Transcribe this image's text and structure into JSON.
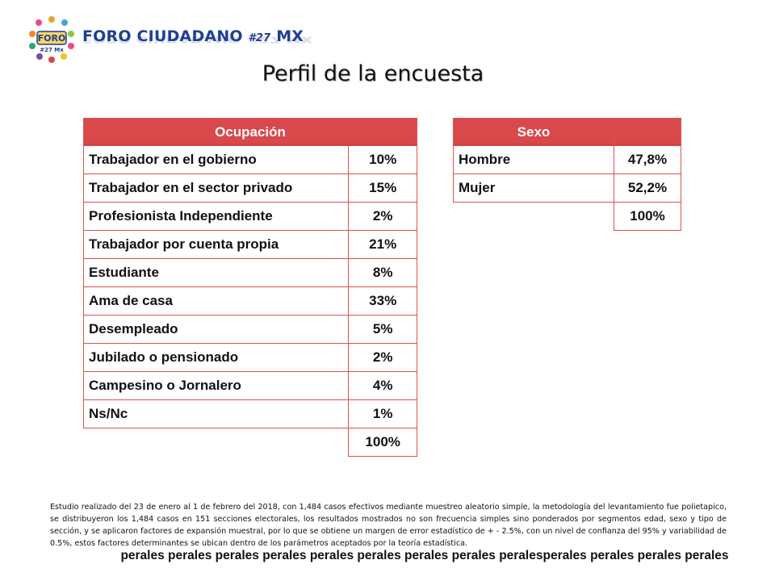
{
  "logo": {
    "emblem_text": "FORO",
    "emblem_subtext": "#27 Mx",
    "name": "FORO CIUDADANO",
    "number": "#27",
    "suffix": "MX"
  },
  "title": "Perfil de la encuesta",
  "occupation_table": {
    "header": "Ocupación",
    "rows": [
      {
        "label": "Trabajador en el gobierno",
        "value": "10%"
      },
      {
        "label": "Trabajador en el sector privado",
        "value": "15%"
      },
      {
        "label": "Profesionista Independiente",
        "value": "2%"
      },
      {
        "label": "Trabajador por cuenta propia",
        "value": "21%"
      },
      {
        "label": "Estudiante",
        "value": "8%"
      },
      {
        "label": "Ama de casa",
        "value": "33%"
      },
      {
        "label": "Desempleado",
        "value": "5%"
      },
      {
        "label": "Jubilado o pensionado",
        "value": "2%"
      },
      {
        "label": "Campesino o Jornalero",
        "value": "4%"
      },
      {
        "label": "Ns/Nc",
        "value": "1%"
      }
    ],
    "total": "100%"
  },
  "sex_table": {
    "header": "Sexo",
    "rows": [
      {
        "label": "Hombre",
        "value": "47,8%"
      },
      {
        "label": "Mujer",
        "value": "52,2%"
      }
    ],
    "total": "100%"
  },
  "footnote": "Estudio realizado del 23 de enero al 1 de febrero del 2018, con 1,484 casos efectivos mediante muestreo aleatorio simple, la metodología del levantamiento fue polietapico, se distribuyeron los 1,484 casos en 151 secciones electorales, los resultados mostrados no son frecuencia simples sino ponderados por segmentos edad, sexo y tipo de sección, y se aplicaron factores de expansión muestral, por lo que se obtiene un margen de error estadístico de + - 2.5%, con un nivel de confianza del 95% y variabilidad de 0.5%, estos factores determinantes se ubican dentro de los parámetros aceptados por la teoría estadística.",
  "filler_text": "perales perales perales perales perales perales perales perales peralesperales perales perales perales",
  "colors": {
    "header_red": "#d9484a",
    "border_red": "#d9534f",
    "logo_blue": "#1f3f8f"
  }
}
